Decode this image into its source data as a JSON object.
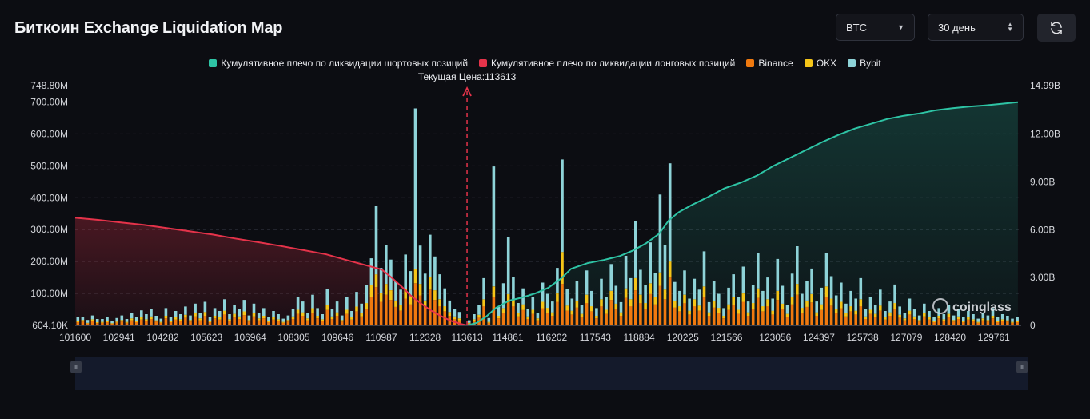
{
  "page": {
    "title": "Биткоин Exchange Liquidation Map",
    "coin_select": "BTC",
    "range_select": "30 день",
    "watermark": "coinglass"
  },
  "colors": {
    "background": "#0c0d12",
    "short_cumulative": "#2ec4a5",
    "long_cumulative": "#e5334a",
    "binance": "#f0790f",
    "okx": "#f5c518",
    "bybit": "#8ed3d8",
    "current_price_line": "#e5334a"
  },
  "chart_data": {
    "type": "bar",
    "legend": [
      {
        "name": "Кумулятивное плечо по ликвидации шортовых позиций",
        "color": "#2ec4a5"
      },
      {
        "name": "Кумулятивное плечо по ликвидации лонговых позиций",
        "color": "#e5334a"
      },
      {
        "name": "Binance",
        "color": "#f0790f"
      },
      {
        "name": "OKX",
        "color": "#f5c518"
      },
      {
        "name": "Bybit",
        "color": "#8ed3d8"
      }
    ],
    "current_price_label": "Текущая Цена:113613",
    "current_price": 113613,
    "x_range": [
      101600,
      130600
    ],
    "x_ticks": [
      101600,
      102941,
      104282,
      105623,
      106964,
      108305,
      109646,
      110987,
      112328,
      113613,
      114861,
      116202,
      117543,
      118884,
      120225,
      121566,
      123056,
      124397,
      125738,
      127079,
      128420,
      129761
    ],
    "y_left": {
      "min": 0,
      "max": 748.8,
      "unit": "M",
      "min_label": "604.10K",
      "max_label": "748.80M",
      "ticks": [
        "100.00M",
        "200.00M",
        "300.00M",
        "400.00M",
        "500.00M",
        "600.00M",
        "700.00M"
      ]
    },
    "y_right": {
      "min": 0,
      "max": 14.99,
      "unit": "B",
      "max_label": "14.99B",
      "ticks": [
        "0",
        "3.00B",
        "6.00B",
        "9.00B",
        "12.00B"
      ]
    },
    "grid": true,
    "legend_position": "top-center",
    "bars_stacked_order": [
      "Binance",
      "OKX",
      "Bybit"
    ],
    "bars": [
      [
        101680,
        10,
        4,
        12
      ],
      [
        101830,
        12,
        5,
        10
      ],
      [
        101980,
        6,
        2,
        9
      ],
      [
        102130,
        14,
        5,
        12
      ],
      [
        102280,
        7,
        3,
        10
      ],
      [
        102430,
        8,
        3,
        9
      ],
      [
        102580,
        10,
        4,
        12
      ],
      [
        102730,
        5,
        2,
        7
      ],
      [
        102880,
        9,
        3,
        11
      ],
      [
        103030,
        12,
        5,
        14
      ],
      [
        103180,
        8,
        3,
        9
      ],
      [
        103330,
        16,
        6,
        18
      ],
      [
        103480,
        10,
        4,
        12
      ],
      [
        103630,
        18,
        7,
        22
      ],
      [
        103780,
        14,
        5,
        16
      ],
      [
        103930,
        20,
        8,
        22
      ],
      [
        104080,
        12,
        4,
        14
      ],
      [
        104230,
        8,
        3,
        10
      ],
      [
        104380,
        22,
        8,
        24
      ],
      [
        104530,
        10,
        4,
        12
      ],
      [
        104680,
        18,
        7,
        20
      ],
      [
        104830,
        14,
        5,
        16
      ],
      [
        104980,
        24,
        9,
        26
      ],
      [
        105130,
        12,
        5,
        14
      ],
      [
        105280,
        28,
        10,
        30
      ],
      [
        105430,
        16,
        6,
        18
      ],
      [
        105580,
        30,
        12,
        32
      ],
      [
        105730,
        10,
        4,
        12
      ],
      [
        105880,
        22,
        8,
        24
      ],
      [
        106030,
        18,
        7,
        20
      ],
      [
        106180,
        34,
        12,
        36
      ],
      [
        106330,
        14,
        5,
        16
      ],
      [
        106480,
        26,
        10,
        28
      ],
      [
        106630,
        20,
        8,
        22
      ],
      [
        106780,
        32,
        12,
        36
      ],
      [
        106930,
        12,
        5,
        14
      ],
      [
        107080,
        28,
        10,
        30
      ],
      [
        107230,
        16,
        6,
        18
      ],
      [
        107380,
        22,
        8,
        24
      ],
      [
        107530,
        10,
        4,
        12
      ],
      [
        107680,
        18,
        7,
        20
      ],
      [
        107830,
        14,
        5,
        16
      ],
      [
        107980,
        8,
        3,
        10
      ],
      [
        108130,
        12,
        5,
        14
      ],
      [
        108280,
        20,
        8,
        22
      ],
      [
        108430,
        36,
        13,
        40
      ],
      [
        108580,
        30,
        11,
        34
      ],
      [
        108730,
        16,
        6,
        18
      ],
      [
        108880,
        40,
        14,
        42
      ],
      [
        109030,
        22,
        8,
        24
      ],
      [
        109180,
        14,
        5,
        16
      ],
      [
        109330,
        48,
        16,
        50
      ],
      [
        109480,
        20,
        8,
        22
      ],
      [
        109630,
        30,
        11,
        34
      ],
      [
        109780,
        12,
        5,
        14
      ],
      [
        109930,
        36,
        13,
        40
      ],
      [
        110080,
        18,
        7,
        20
      ],
      [
        110230,
        44,
        15,
        46
      ],
      [
        110380,
        28,
        10,
        30
      ],
      [
        110530,
        52,
        18,
        56
      ],
      [
        110680,
        90,
        36,
        84
      ],
      [
        110830,
        120,
        40,
        215
      ],
      [
        110980,
        74,
        28,
        78
      ],
      [
        111130,
        96,
        34,
        122
      ],
      [
        111280,
        80,
        30,
        96
      ],
      [
        111430,
        58,
        20,
        62
      ],
      [
        111580,
        46,
        18,
        48
      ],
      [
        111730,
        84,
        30,
        108
      ],
      [
        111880,
        66,
        26,
        78
      ],
      [
        112030,
        132,
        46,
        502
      ],
      [
        112180,
        94,
        36,
        120
      ],
      [
        112330,
        58,
        20,
        84
      ],
      [
        112480,
        112,
        40,
        132
      ],
      [
        112630,
        80,
        30,
        106
      ],
      [
        112780,
        60,
        22,
        78
      ],
      [
        112930,
        44,
        16,
        56
      ],
      [
        113080,
        30,
        12,
        36
      ],
      [
        113230,
        20,
        8,
        24
      ],
      [
        113380,
        16,
        6,
        20
      ],
      [
        113680,
        6,
        2,
        8
      ],
      [
        113830,
        14,
        5,
        16
      ],
      [
        113980,
        24,
        9,
        30
      ],
      [
        114130,
        60,
        22,
        66
      ],
      [
        114280,
        8,
        3,
        12
      ],
      [
        114430,
        90,
        32,
        376
      ],
      [
        114580,
        22,
        8,
        28
      ],
      [
        114730,
        40,
        14,
        78
      ],
      [
        114880,
        72,
        26,
        180
      ],
      [
        115030,
        60,
        22,
        70
      ],
      [
        115180,
        28,
        10,
        32
      ],
      [
        115330,
        48,
        18,
        50
      ],
      [
        115480,
        20,
        8,
        22
      ],
      [
        115630,
        36,
        13,
        40
      ],
      [
        115780,
        16,
        6,
        18
      ],
      [
        115930,
        54,
        20,
        60
      ],
      [
        116080,
        40,
        15,
        44
      ],
      [
        116230,
        30,
        11,
        34
      ],
      [
        116380,
        74,
        26,
        80
      ],
      [
        116530,
        130,
        100,
        290
      ],
      [
        116680,
        46,
        16,
        52
      ],
      [
        116830,
        34,
        12,
        38
      ],
      [
        116980,
        56,
        20,
        62
      ],
      [
        117130,
        26,
        10,
        28
      ],
      [
        117280,
        70,
        26,
        76
      ],
      [
        117430,
        44,
        16,
        48
      ],
      [
        117580,
        22,
        8,
        24
      ],
      [
        117730,
        60,
        22,
        64
      ],
      [
        117880,
        36,
        13,
        40
      ],
      [
        118030,
        80,
        28,
        84
      ],
      [
        118180,
        50,
        18,
        56
      ],
      [
        118330,
        30,
        11,
        32
      ],
      [
        118480,
        86,
        30,
        102
      ],
      [
        118630,
        60,
        22,
        66
      ],
      [
        118780,
        110,
        38,
        178
      ],
      [
        118930,
        70,
        26,
        78
      ],
      [
        119080,
        52,
        18,
        56
      ],
      [
        119230,
        98,
        34,
        128
      ],
      [
        119380,
        66,
        24,
        74
      ],
      [
        119530,
        124,
        42,
        244
      ],
      [
        119680,
        82,
        30,
        140
      ],
      [
        119830,
        150,
        50,
        308
      ],
      [
        119980,
        56,
        20,
        60
      ],
      [
        120130,
        44,
        16,
        48
      ],
      [
        120280,
        70,
        26,
        76
      ],
      [
        120430,
        34,
        12,
        38
      ],
      [
        120580,
        60,
        22,
        64
      ],
      [
        120730,
        46,
        16,
        50
      ],
      [
        120880,
        90,
        32,
        110
      ],
      [
        121030,
        30,
        11,
        32
      ],
      [
        121180,
        56,
        20,
        62
      ],
      [
        121330,
        40,
        15,
        44
      ],
      [
        121480,
        22,
        8,
        24
      ],
      [
        121630,
        48,
        18,
        52
      ],
      [
        121780,
        64,
        24,
        72
      ],
      [
        121930,
        36,
        13,
        40
      ],
      [
        122080,
        74,
        26,
        84
      ],
      [
        122230,
        30,
        11,
        34
      ],
      [
        122380,
        52,
        18,
        56
      ],
      [
        122530,
        86,
        30,
        110
      ],
      [
        122680,
        44,
        16,
        48
      ],
      [
        122830,
        60,
        22,
        68
      ],
      [
        122980,
        34,
        12,
        38
      ],
      [
        123130,
        80,
        28,
        100
      ],
      [
        123280,
        50,
        18,
        56
      ],
      [
        123430,
        26,
        10,
        28
      ],
      [
        123580,
        66,
        24,
        72
      ],
      [
        123730,
        96,
        34,
        118
      ],
      [
        123880,
        40,
        15,
        44
      ],
      [
        124030,
        58,
        20,
        62
      ],
      [
        124180,
        72,
        26,
        80
      ],
      [
        124330,
        30,
        11,
        34
      ],
      [
        124480,
        48,
        18,
        52
      ],
      [
        124630,
        90,
        32,
        104
      ],
      [
        124780,
        62,
        22,
        70
      ],
      [
        124930,
        38,
        14,
        42
      ],
      [
        125080,
        54,
        20,
        60
      ],
      [
        125230,
        28,
        10,
        30
      ],
      [
        125380,
        44,
        16,
        48
      ],
      [
        125530,
        34,
        12,
        38
      ],
      [
        125680,
        60,
        22,
        66
      ],
      [
        125830,
        20,
        8,
        24
      ],
      [
        125980,
        36,
        13,
        40
      ],
      [
        126130,
        26,
        10,
        28
      ],
      [
        126280,
        46,
        16,
        50
      ],
      [
        126430,
        18,
        7,
        20
      ],
      [
        126580,
        30,
        11,
        34
      ],
      [
        126730,
        52,
        18,
        58
      ],
      [
        126880,
        24,
        9,
        26
      ],
      [
        127030,
        16,
        6,
        18
      ],
      [
        127180,
        34,
        12,
        38
      ],
      [
        127330,
        20,
        8,
        22
      ],
      [
        127480,
        12,
        5,
        14
      ],
      [
        127630,
        28,
        10,
        30
      ],
      [
        127780,
        18,
        7,
        20
      ],
      [
        127930,
        10,
        4,
        12
      ],
      [
        128080,
        22,
        8,
        24
      ],
      [
        128230,
        14,
        5,
        16
      ],
      [
        128380,
        26,
        10,
        28
      ],
      [
        128530,
        12,
        5,
        14
      ],
      [
        128680,
        20,
        8,
        22
      ],
      [
        128830,
        10,
        4,
        12
      ],
      [
        128980,
        18,
        7,
        20
      ],
      [
        129130,
        14,
        5,
        16
      ],
      [
        129280,
        8,
        3,
        10
      ],
      [
        129430,
        16,
        6,
        18
      ],
      [
        129580,
        12,
        5,
        14
      ],
      [
        129730,
        22,
        8,
        24
      ],
      [
        129880,
        10,
        4,
        12
      ],
      [
        130030,
        14,
        5,
        16
      ],
      [
        130180,
        12,
        4,
        14
      ],
      [
        130330,
        8,
        3,
        10
      ],
      [
        130480,
        10,
        4,
        12
      ]
    ],
    "long_cumulative": [
      [
        101600,
        6.75
      ],
      [
        102300,
        6.62
      ],
      [
        103000,
        6.45
      ],
      [
        103700,
        6.3
      ],
      [
        104400,
        6.1
      ],
      [
        105100,
        5.9
      ],
      [
        105800,
        5.7
      ],
      [
        106500,
        5.45
      ],
      [
        107200,
        5.22
      ],
      [
        107900,
        4.98
      ],
      [
        108600,
        4.72
      ],
      [
        109300,
        4.45
      ],
      [
        110000,
        4.05
      ],
      [
        110500,
        3.78
      ],
      [
        111000,
        3.5
      ],
      [
        111300,
        3.0
      ],
      [
        111600,
        2.45
      ],
      [
        111900,
        1.85
      ],
      [
        112200,
        1.38
      ],
      [
        112500,
        0.95
      ],
      [
        112800,
        0.6
      ],
      [
        113100,
        0.3
      ],
      [
        113400,
        0.1
      ],
      [
        113613,
        0
      ]
    ],
    "short_cumulative": [
      [
        113613,
        0
      ],
      [
        113900,
        0.15
      ],
      [
        114200,
        0.55
      ],
      [
        114500,
        1.1
      ],
      [
        114900,
        1.55
      ],
      [
        115300,
        1.75
      ],
      [
        115700,
        2.0
      ],
      [
        116100,
        2.35
      ],
      [
        116500,
        2.95
      ],
      [
        116800,
        3.55
      ],
      [
        117300,
        3.9
      ],
      [
        117800,
        4.1
      ],
      [
        118300,
        4.35
      ],
      [
        118700,
        4.7
      ],
      [
        119100,
        5.15
      ],
      [
        119500,
        5.75
      ],
      [
        119800,
        6.6
      ],
      [
        120100,
        7.1
      ],
      [
        120500,
        7.55
      ],
      [
        121000,
        8.05
      ],
      [
        121500,
        8.6
      ],
      [
        122000,
        8.95
      ],
      [
        122500,
        9.4
      ],
      [
        123000,
        10.0
      ],
      [
        123500,
        10.5
      ],
      [
        124000,
        11.0
      ],
      [
        124500,
        11.5
      ],
      [
        125000,
        11.95
      ],
      [
        125500,
        12.35
      ],
      [
        126000,
        12.65
      ],
      [
        126500,
        12.95
      ],
      [
        127000,
        13.15
      ],
      [
        127500,
        13.3
      ],
      [
        128000,
        13.5
      ],
      [
        128500,
        13.62
      ],
      [
        129000,
        13.72
      ],
      [
        129500,
        13.8
      ],
      [
        130000,
        13.9
      ],
      [
        130500,
        14.0
      ]
    ]
  }
}
